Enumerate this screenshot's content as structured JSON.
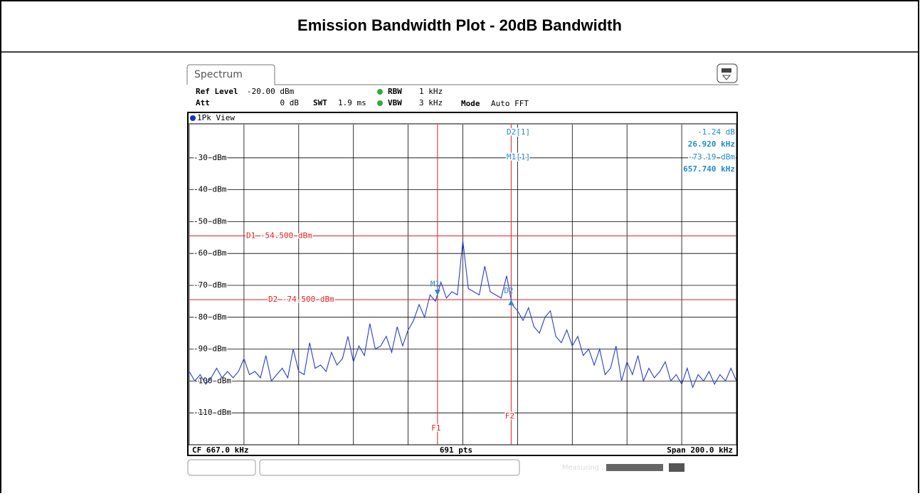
{
  "title": "Emission Bandwidth Plot - 20dB Bandwidth",
  "screen": {
    "tab": "Spectrum",
    "ref_level_label": "Ref Level",
    "ref_level": "-20.00 dBm",
    "att_label": "Att",
    "att": "0 dB",
    "swt_label": "SWT",
    "swt": "1.9 ms",
    "rbw_label": "RBW",
    "rbw": "1 kHz",
    "vbw_label": "VBW",
    "vbw": "3 kHz",
    "mode_label": "Mode",
    "mode": "Auto FFT",
    "view": "1Pk View",
    "footer_left": "CF 667.0 kHz",
    "footer_center": "691 pts",
    "footer_right": "Span 200.0 kHz",
    "status": "Measuring ..."
  },
  "chart_data": {
    "type": "line",
    "xlim": [
      567,
      767
    ],
    "ylim": [
      -120,
      -20
    ],
    "xticks": [
      567,
      587,
      607,
      627,
      647,
      667,
      687,
      707,
      727,
      747,
      767
    ],
    "yticks": [
      {
        "value": -30,
        "label": "-30 dBm"
      },
      {
        "value": -40,
        "label": "-40 dBm"
      },
      {
        "value": -50,
        "label": "-50 dBm"
      },
      {
        "value": -60,
        "label": "-60 dBm"
      },
      {
        "value": -70,
        "label": "-70 dBm"
      },
      {
        "value": -80,
        "label": "-80 dBm"
      },
      {
        "value": -90,
        "label": "-90 dBm"
      },
      {
        "value": -100,
        "label": "-100 dBm"
      },
      {
        "value": -110,
        "label": "-110 dBm"
      }
    ],
    "grid": true,
    "x": [
      567,
      569,
      571,
      573,
      575,
      577,
      579,
      581,
      583,
      585,
      587,
      589,
      591,
      593,
      595,
      597,
      599,
      601,
      603,
      605,
      607,
      609,
      611,
      613,
      615,
      617,
      619,
      621,
      623,
      625,
      627,
      629,
      631,
      633,
      635,
      637,
      639,
      641,
      643,
      645,
      647,
      649,
      651,
      653,
      655,
      657,
      659,
      661,
      663,
      665,
      667,
      669,
      671,
      673,
      675,
      677,
      679,
      681,
      683,
      685,
      687,
      689,
      691,
      693,
      695,
      697,
      699,
      701,
      703,
      705,
      707,
      709,
      711,
      713,
      715,
      717,
      719,
      721,
      723,
      725,
      727,
      729,
      731,
      733,
      735,
      737,
      739,
      741,
      743,
      745,
      747,
      749,
      751,
      753,
      755,
      757,
      759,
      761,
      763,
      765,
      767
    ],
    "series": [
      {
        "color": "#2b3cd0",
        "values": [
          -97,
          -100,
          -98,
          -101,
          -99,
          -96,
          -99,
          -97,
          -99,
          -97,
          -93,
          -98,
          -97,
          -99,
          -92,
          -100,
          -98,
          -96,
          -99,
          -90,
          -97,
          -98,
          -88,
          -96,
          -95,
          -97,
          -91,
          -95,
          -93,
          -86,
          -94,
          -89,
          -92,
          -82,
          -90,
          -89,
          -86,
          -91,
          -83,
          -89,
          -84,
          -81,
          -76,
          -80,
          -73,
          -75,
          -69,
          -74,
          -72,
          -73,
          -56,
          -71,
          -72,
          -73,
          -64,
          -72,
          -73,
          -74,
          -67,
          -76,
          -78,
          -81,
          -77,
          -83,
          -85,
          -80,
          -78,
          -86,
          -88,
          -84,
          -89,
          -86,
          -92,
          -90,
          -95,
          -90,
          -98,
          -96,
          -89,
          -100,
          -94,
          -98,
          -92,
          -100,
          -96,
          -99,
          -97,
          -94,
          -100,
          -98,
          -101,
          -96,
          -102,
          -98,
          -100,
          -97,
          -101,
          -98,
          -100,
          -96,
          -100
        ]
      }
    ],
    "lines": [
      {
        "name": "D1",
        "value": -54.5,
        "value_label": "-54.500 dBm"
      },
      {
        "name": "D2",
        "value": -74.5,
        "value_label": "-74.500 dBm"
      }
    ],
    "frequency_lines": [
      {
        "name": "F1"
      },
      {
        "name": "F2"
      }
    ],
    "markers": {
      "d2_name": "D2[1]",
      "d2_level": -1.24,
      "d2_level_label": "-1.24 dB",
      "d2_freq": 26.92,
      "d2_freq_label": "26.920 kHz",
      "m1_name": "M1[1]",
      "m1_level": -73.19,
      "m1_level_label": "-73.19 dBm",
      "m1_freq": 657.74,
      "m1_freq_label": "657.740 kHz",
      "m1_tag": "M1",
      "d2_tag": "D2"
    }
  }
}
